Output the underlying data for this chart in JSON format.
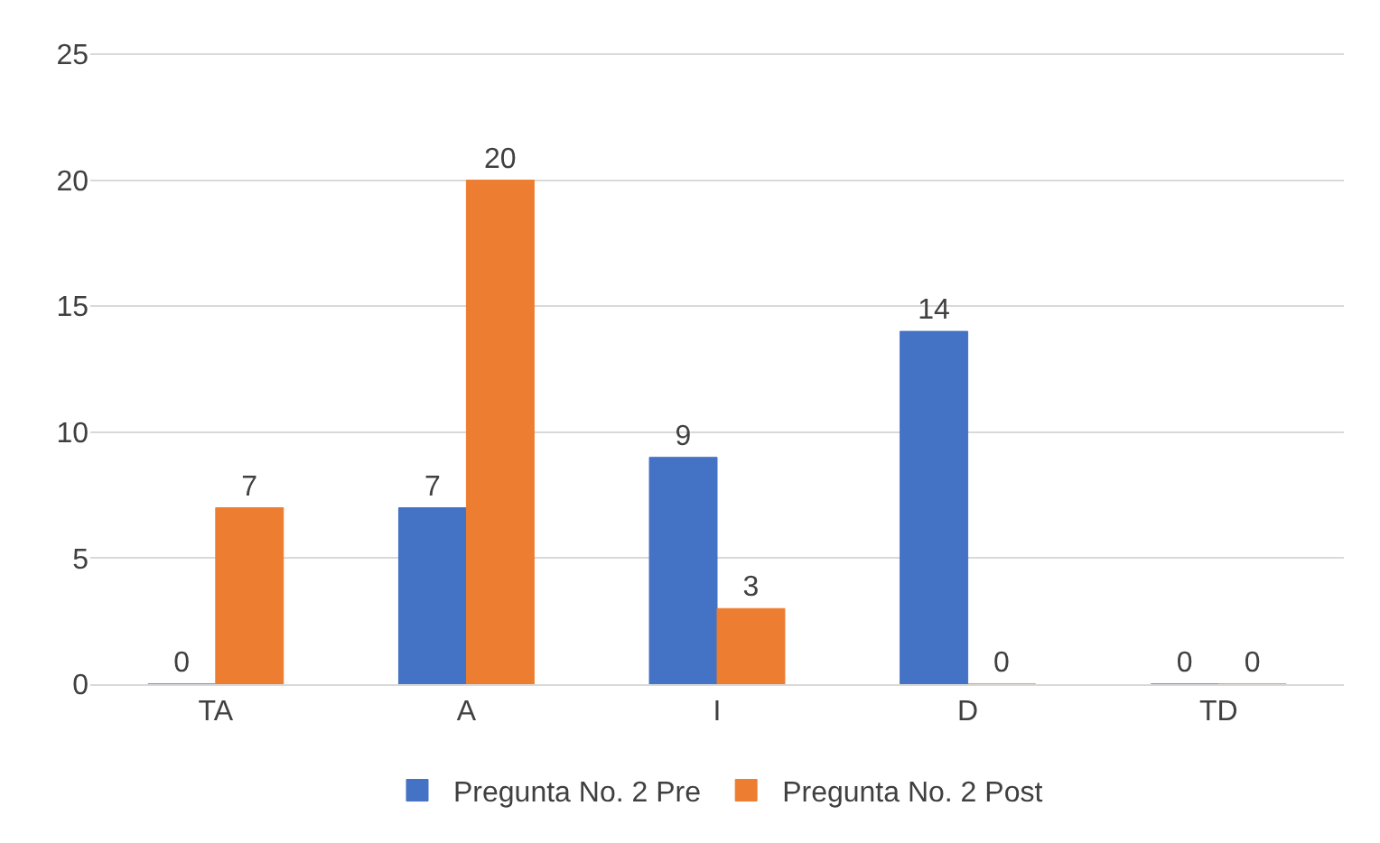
{
  "chart_data": {
    "type": "bar",
    "categories": [
      "TA",
      "A",
      "I",
      "D",
      "TD"
    ],
    "series": [
      {
        "name": "Pregunta No. 2 Pre",
        "color": "#4472c4",
        "values": [
          0,
          7,
          9,
          14,
          0
        ]
      },
      {
        "name": "Pregunta No. 2 Post",
        "color": "#ed7d31",
        "values": [
          7,
          20,
          3,
          0,
          0
        ]
      }
    ],
    "ylim": [
      0,
      25
    ],
    "yticks": [
      0,
      5,
      10,
      15,
      20,
      25
    ],
    "grid": "y",
    "legend": "bottom",
    "data_labels": true
  }
}
